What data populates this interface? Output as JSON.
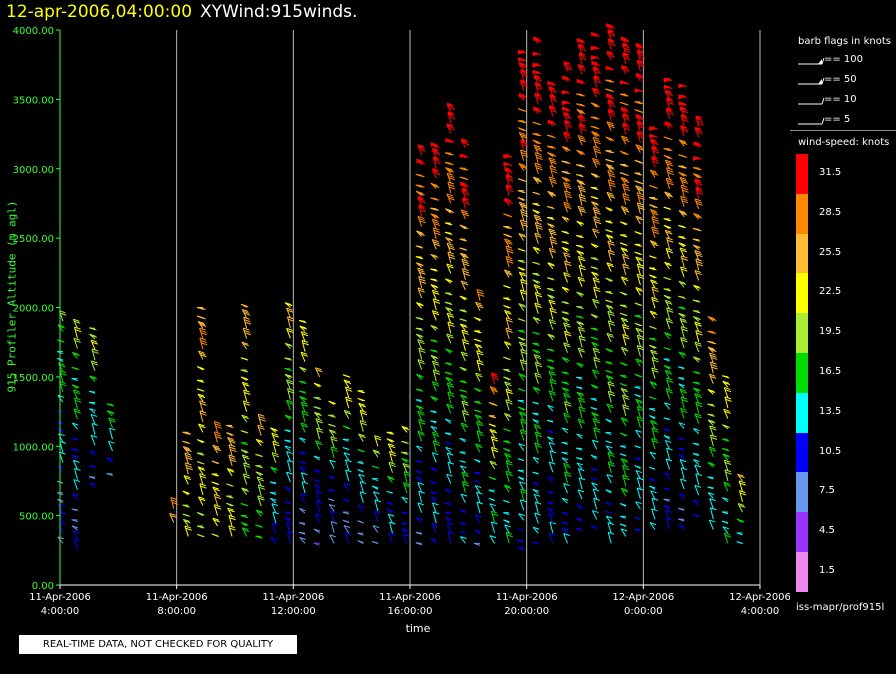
{
  "header": {
    "datetime": "12-apr-2006,04:00:00",
    "name": "XYWind:915winds."
  },
  "chart_data": {
    "type": "scatter",
    "title": "XYWind:915winds.",
    "xlabel": "time",
    "ylabel": "915 Profiler Altitude (m agl)",
    "ylim": [
      0,
      4000
    ],
    "y_ticks": [
      "0.00",
      "500.00",
      "1000.00",
      "1500.00",
      "2000.00",
      "2500.00",
      "3000.00",
      "3500.00",
      "4000.00"
    ],
    "x_ticks": [
      {
        "date": "11-Apr-2006",
        "time": "4:00:00"
      },
      {
        "date": "11-Apr-2006",
        "time": "8:00:00"
      },
      {
        "date": "11-Apr-2006",
        "time": "12:00:00"
      },
      {
        "date": "11-Apr-2006",
        "time": "16:00:00"
      },
      {
        "date": "11-Apr-2006",
        "time": "20:00:00"
      },
      {
        "date": "12-Apr-2006",
        "time": "0:00:00"
      },
      {
        "date": "12-Apr-2006",
        "time": "4:00:00"
      }
    ],
    "x_range_hours": [
      0,
      24
    ],
    "grid": "vertical",
    "series_description": "wind barbs colored by wind speed (knots)",
    "columns": [
      {
        "t": 0.1,
        "min": 300,
        "max": 1900,
        "smin": 8,
        "smax": 18
      },
      {
        "t": 0.6,
        "min": 250,
        "max": 1850,
        "smin": 9,
        "smax": 20
      },
      {
        "t": 1.2,
        "min": 700,
        "max": 1850,
        "smin": 10,
        "smax": 22
      },
      {
        "t": 1.8,
        "min": 800,
        "max": 1300,
        "smin": 9,
        "smax": 18
      },
      {
        "t": 3.9,
        "min": 450,
        "max": 550,
        "smin": 24,
        "smax": 28
      },
      {
        "t": 4.4,
        "min": 350,
        "max": 1100,
        "smin": 20,
        "smax": 27
      },
      {
        "t": 4.9,
        "min": 350,
        "max": 2000,
        "smin": 20,
        "smax": 27
      },
      {
        "t": 5.4,
        "min": 350,
        "max": 1100,
        "smin": 21,
        "smax": 28
      },
      {
        "t": 5.9,
        "min": 350,
        "max": 1150,
        "smin": 20,
        "smax": 26
      },
      {
        "t": 6.4,
        "min": 350,
        "max": 2000,
        "smin": 17,
        "smax": 26
      },
      {
        "t": 6.9,
        "min": 350,
        "max": 1150,
        "smin": 17,
        "smax": 24
      },
      {
        "t": 7.4,
        "min": 300,
        "max": 1100,
        "smin": 10,
        "smax": 22
      },
      {
        "t": 7.9,
        "min": 300,
        "max": 2000,
        "smin": 10,
        "smax": 24
      },
      {
        "t": 8.4,
        "min": 300,
        "max": 1900,
        "smin": 8,
        "smax": 24
      },
      {
        "t": 8.9,
        "min": 300,
        "max": 1500,
        "smin": 7,
        "smax": 24
      },
      {
        "t": 9.4,
        "min": 300,
        "max": 1300,
        "smin": 6,
        "smax": 24
      },
      {
        "t": 9.9,
        "min": 300,
        "max": 1500,
        "smin": 8,
        "smax": 23
      },
      {
        "t": 10.4,
        "min": 300,
        "max": 1400,
        "smin": 9,
        "smax": 24
      },
      {
        "t": 10.9,
        "min": 300,
        "max": 1000,
        "smin": 8,
        "smax": 21
      },
      {
        "t": 11.4,
        "min": 300,
        "max": 1100,
        "smin": 10,
        "smax": 24
      },
      {
        "t": 11.9,
        "min": 300,
        "max": 1100,
        "smin": 10,
        "smax": 23
      },
      {
        "t": 12.4,
        "min": 300,
        "max": 3100,
        "smin": 10,
        "smax": 33
      },
      {
        "t": 12.9,
        "min": 300,
        "max": 3150,
        "smin": 10,
        "smax": 33
      },
      {
        "t": 13.4,
        "min": 300,
        "max": 3400,
        "smin": 10,
        "smax": 33
      },
      {
        "t": 13.9,
        "min": 300,
        "max": 3150,
        "smin": 12,
        "smax": 33
      },
      {
        "t": 14.4,
        "min": 300,
        "max": 2050,
        "smin": 10,
        "smax": 26
      },
      {
        "t": 14.9,
        "min": 300,
        "max": 1450,
        "smin": 12,
        "smax": 31
      },
      {
        "t": 15.4,
        "min": 300,
        "max": 3100,
        "smin": 14,
        "smax": 33
      },
      {
        "t": 15.9,
        "min": 250,
        "max": 3850,
        "smin": 12,
        "smax": 34
      },
      {
        "t": 16.4,
        "min": 300,
        "max": 3900,
        "smin": 12,
        "smax": 34
      },
      {
        "t": 16.9,
        "min": 300,
        "max": 3600,
        "smin": 10,
        "smax": 34
      },
      {
        "t": 17.4,
        "min": 300,
        "max": 3700,
        "smin": 12,
        "smax": 34
      },
      {
        "t": 17.9,
        "min": 400,
        "max": 3900,
        "smin": 12,
        "smax": 34
      },
      {
        "t": 18.4,
        "min": 400,
        "max": 3950,
        "smin": 12,
        "smax": 34
      },
      {
        "t": 18.9,
        "min": 300,
        "max": 4000,
        "smin": 12,
        "smax": 34
      },
      {
        "t": 19.4,
        "min": 350,
        "max": 3900,
        "smin": 14,
        "smax": 34
      },
      {
        "t": 19.9,
        "min": 400,
        "max": 3850,
        "smin": 12,
        "smax": 34
      },
      {
        "t": 20.4,
        "min": 400,
        "max": 3300,
        "smin": 12,
        "smax": 33
      },
      {
        "t": 20.9,
        "min": 400,
        "max": 3650,
        "smin": 10,
        "smax": 34
      },
      {
        "t": 21.4,
        "min": 400,
        "max": 3600,
        "smin": 10,
        "smax": 34
      },
      {
        "t": 21.9,
        "min": 500,
        "max": 3300,
        "smin": 12,
        "smax": 34
      },
      {
        "t": 22.4,
        "min": 400,
        "max": 1900,
        "smin": 12,
        "smax": 30
      },
      {
        "t": 22.9,
        "min": 300,
        "max": 1500,
        "smin": 14,
        "smax": 24
      },
      {
        "t": 23.4,
        "min": 300,
        "max": 750,
        "smin": 14,
        "smax": 24
      }
    ]
  },
  "legend": {
    "barb_header": "barb flags in knots",
    "barb_items": [
      {
        "label": "== 100"
      },
      {
        "label": "== 50"
      },
      {
        "label": "== 10"
      },
      {
        "label": "== 5"
      }
    ],
    "speed_header": "wind-speed: knots",
    "speed_bins": [
      {
        "label": "31.5",
        "color": "#ff0000"
      },
      {
        "label": "28.5",
        "color": "#ff8800"
      },
      {
        "label": "25.5",
        "color": "#ffbb33"
      },
      {
        "label": "22.5",
        "color": "#ffff00"
      },
      {
        "label": "19.5",
        "color": "#aaee33"
      },
      {
        "label": "16.5",
        "color": "#00dd00"
      },
      {
        "label": "13.5",
        "color": "#00ffff"
      },
      {
        "label": "10.5",
        "color": "#0000ff"
      },
      {
        "label": "7.5",
        "color": "#6699ee"
      },
      {
        "label": "4.5",
        "color": "#9933ff"
      },
      {
        "label": "1.5",
        "color": "#ee88ee"
      }
    ],
    "source": "iss-mapr/prof915l"
  },
  "notice": "REAL-TIME DATA, NOT CHECKED FOR QUALITY"
}
